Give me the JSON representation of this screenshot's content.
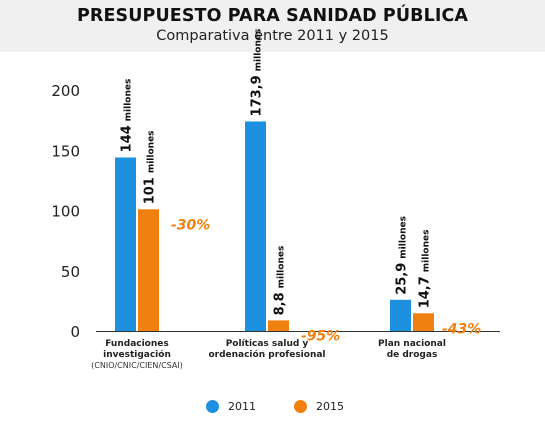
{
  "header": {
    "title": "PRESUPUESTO PARA SANIDAD PÚBLICA",
    "subtitle": "Comparativa entre 2011 y 2015"
  },
  "colors": {
    "series_2011": "#1e90e0",
    "series_2015": "#f08010",
    "change_label": "#f08010",
    "header_bg": "#f0f0f0"
  },
  "chart_data": {
    "type": "bar",
    "title": "PRESUPUESTO PARA SANIDAD PÚBLICA",
    "subtitle": "Comparativa entre 2011 y 2015",
    "ylim": [
      0,
      200
    ],
    "yticks": [
      0,
      50,
      100,
      150,
      200
    ],
    "grid": false,
    "legend_position": "bottom",
    "unit_label": "millones",
    "categories": [
      {
        "lines": [
          "Fundaciones",
          "investigación"
        ],
        "sub": "(CNIO/CNIC/CIEN/CSAI)"
      },
      {
        "lines": [
          "Políticas salud y",
          "ordenación profesional"
        ],
        "sub": ""
      },
      {
        "lines": [
          "Plan nacional",
          "de drogas"
        ],
        "sub": ""
      }
    ],
    "series": [
      {
        "name": "2011",
        "values": [
          144,
          173.9,
          25.9
        ],
        "labels": [
          "144",
          "173,9",
          "25,9"
        ]
      },
      {
        "name": "2015",
        "values": [
          101,
          8.8,
          14.7
        ],
        "labels": [
          "101",
          "8,8",
          "14,7"
        ]
      }
    ],
    "changes": [
      "-30%",
      "-95%",
      "-43%"
    ]
  },
  "legend": [
    {
      "name": "2011"
    },
    {
      "name": "2015"
    }
  ]
}
